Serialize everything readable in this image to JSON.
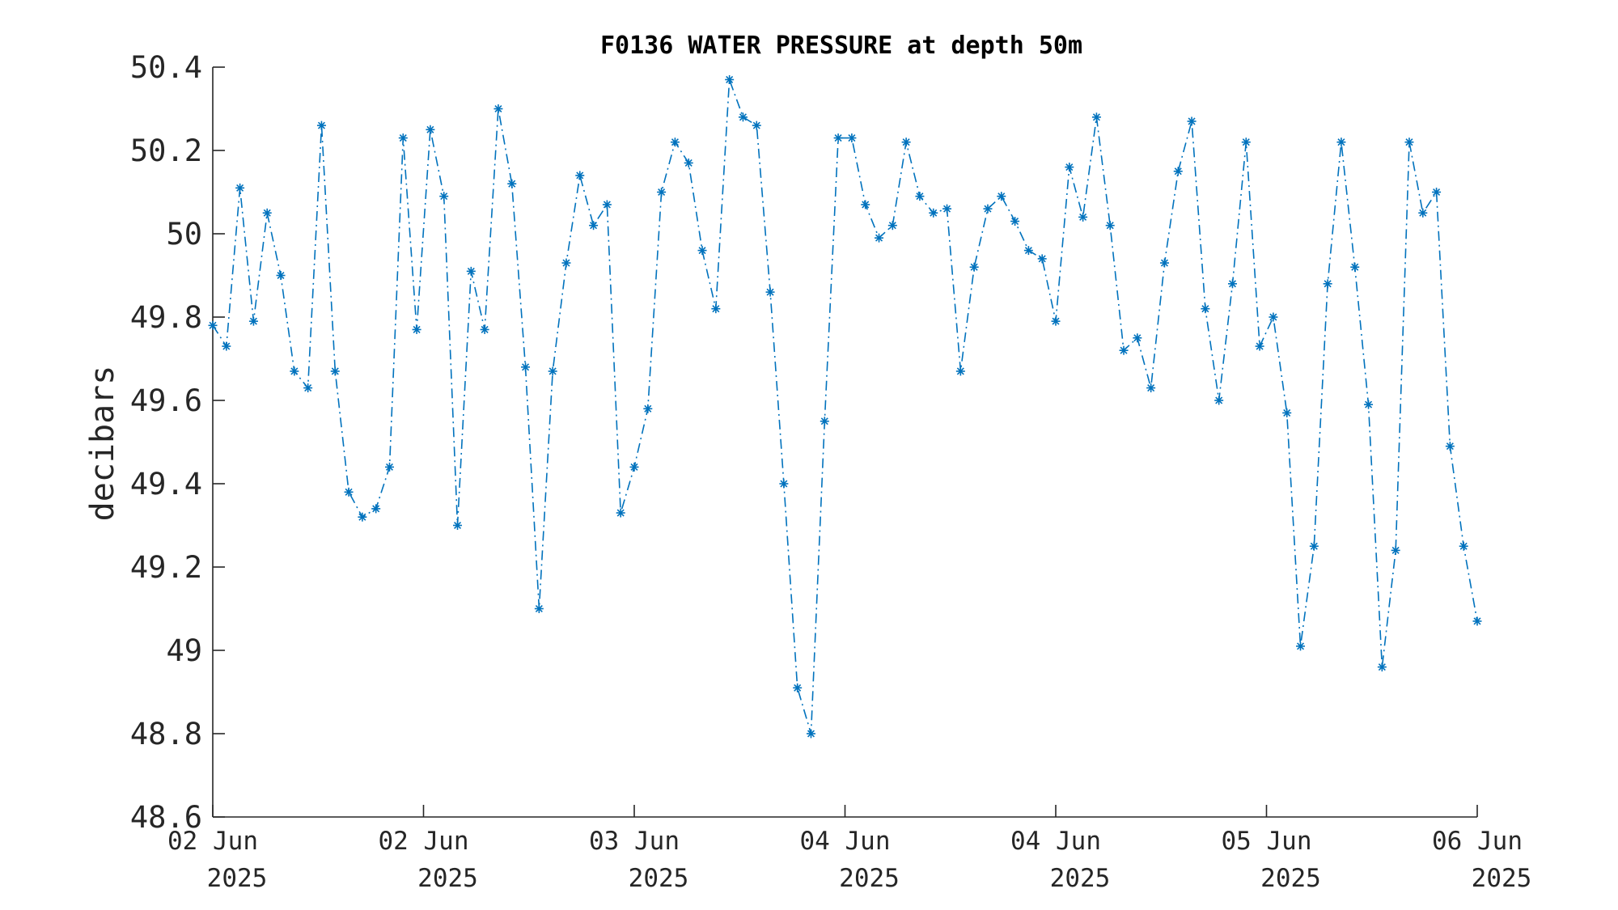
{
  "chart_data": {
    "type": "line",
    "title": "F0136 WATER PRESSURE at depth 50m",
    "xlabel": "",
    "ylabel": "decibars",
    "ylim": [
      48.6,
      50.4
    ],
    "yticks": [
      "48.6",
      "48.8",
      "49",
      "49.2",
      "49.4",
      "49.6",
      "49.8",
      "50",
      "50.2",
      "50.4"
    ],
    "xlim": [
      "02 Jun 2025",
      "06 Jun 2025"
    ],
    "xticks": [
      {
        "day": "02 Jun",
        "year": "2025"
      },
      {
        "day": "02 Jun",
        "year": "2025"
      },
      {
        "day": "03 Jun",
        "year": "2025"
      },
      {
        "day": "04 Jun",
        "year": "2025"
      },
      {
        "day": "04 Jun",
        "year": "2025"
      },
      {
        "day": "05 Jun",
        "year": "2025"
      },
      {
        "day": "06 Jun",
        "year": "2025"
      }
    ],
    "grid": false,
    "line_style": "dash-dot",
    "marker": "asterisk",
    "color": "#0072BD",
    "series": [
      {
        "values": [
          49.78,
          49.73,
          50.11,
          49.79,
          50.05,
          49.9,
          49.67,
          49.63,
          50.26,
          49.67,
          49.38,
          49.32,
          49.34,
          49.44,
          50.23,
          49.77,
          50.25,
          50.09,
          49.3,
          49.91,
          49.77,
          50.3,
          50.12,
          49.68,
          49.1,
          49.67,
          49.93,
          50.14,
          50.02,
          50.07,
          49.33,
          49.44,
          49.58,
          50.1,
          50.22,
          50.17,
          49.96,
          49.82,
          50.37,
          50.28,
          50.26,
          49.86,
          49.4,
          48.91,
          48.8,
          49.55,
          50.23,
          50.23,
          50.07,
          49.99,
          50.02,
          50.22,
          50.09,
          50.05,
          50.06,
          49.67,
          49.92,
          50.06,
          50.09,
          50.03,
          49.96,
          49.94,
          49.79,
          50.16,
          50.04,
          50.28,
          50.02,
          49.72,
          49.75,
          49.63,
          49.93,
          50.15,
          50.27,
          49.82,
          49.6,
          49.88,
          50.22,
          49.73,
          49.8,
          49.57,
          49.01,
          49.25,
          49.88,
          50.22,
          49.92,
          49.59,
          48.96,
          49.24,
          50.22,
          50.05,
          50.1,
          49.49,
          49.25,
          49.07
        ]
      }
    ]
  }
}
